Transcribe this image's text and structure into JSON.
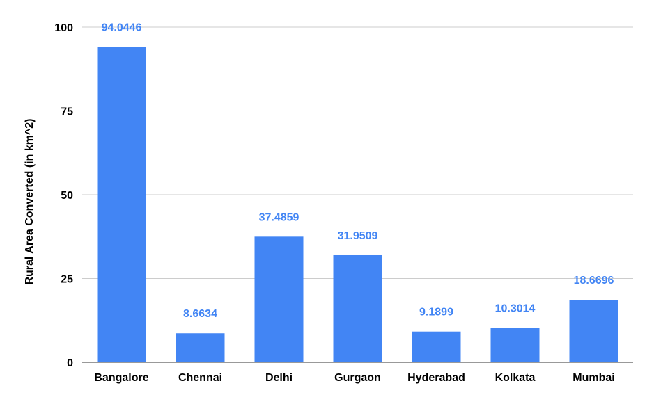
{
  "chart_data": {
    "type": "bar",
    "title": "",
    "xlabel": "",
    "ylabel": "Rural Area Converted (in km^2)",
    "ylim": [
      0,
      100
    ],
    "yticks": [
      0,
      25,
      50,
      75,
      100
    ],
    "grid": true,
    "legend": "none",
    "categories": [
      "Bangalore",
      "Chennai",
      "Delhi",
      "Gurgaon",
      "Hyderabad",
      "Kolkata",
      "Mumbai"
    ],
    "values": [
      94.0446,
      8.6634,
      37.4859,
      31.9509,
      9.1899,
      10.3014,
      18.6696
    ],
    "data_labels": [
      "94.0446",
      "8.6634",
      "37.4859",
      "31.9509",
      "9.1899",
      "10.3014",
      "18.6696"
    ],
    "colors": {
      "bar": "#4285f4",
      "data_label": "#4285f4",
      "grid": "#cccccc",
      "axis": "#333333"
    }
  }
}
